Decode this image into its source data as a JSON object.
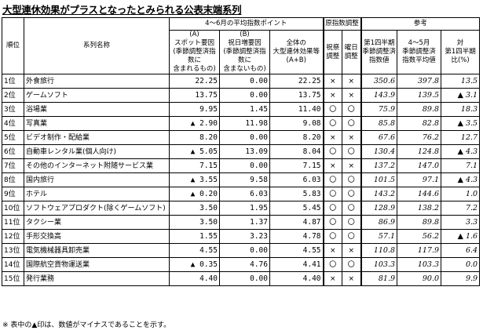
{
  "title": "大型連休効果がプラスとなったとみられる公表末端系列",
  "headers": {
    "rank": "順位",
    "name": "系列名称",
    "group_points": "4～6月の平均指数ポイント",
    "a": "(A)\nスポット要因\n(季節調整済指数に\n含まれるもの)",
    "b": "(B)\n祝日増要因\n(季節調整済指数に\n含まないもの)",
    "total": "全体の\n大型連休効果等\n(A+B)",
    "group_adj": "原指数調整",
    "holiday_adj": "祝祭\n調整",
    "weekday_adj": "曜日\n調整",
    "group_ref": "参考",
    "h1": "第1四半期\n季節調整済\n指数値",
    "apr_jun": "4～5月\n季節調整済\n指数平均値",
    "ratio": "対\n第1四半期\n比(%)"
  },
  "rows": [
    {
      "rank": "1位",
      "name": "外食旅行",
      "a": "22.25",
      "b": "0.00",
      "total": "22.25",
      "holiday": "×",
      "weekday": "×",
      "q1": "350.6",
      "avg": "397.8",
      "ratio": "13.5"
    },
    {
      "rank": "2位",
      "name": "ゲームソフト",
      "a": "13.75",
      "b": "0.00",
      "total": "13.75",
      "holiday": "×",
      "weekday": "×",
      "q1": "143.9",
      "avg": "139.5",
      "ratio": "▲ 3.1"
    },
    {
      "rank": "3位",
      "name": "浴場業",
      "a": "9.95",
      "b": "1.45",
      "total": "11.40",
      "holiday": "〇",
      "weekday": "〇",
      "q1": "75.9",
      "avg": "89.8",
      "ratio": "18.3"
    },
    {
      "rank": "4位",
      "name": "写真業",
      "a": "▲ 2.90",
      "b": "11.98",
      "total": "9.08",
      "holiday": "〇",
      "weekday": "〇",
      "q1": "85.8",
      "avg": "82.8",
      "ratio": "▲ 3.5"
    },
    {
      "rank": "5位",
      "name": "ビデオ制作・配給業",
      "a": "8.20",
      "b": "0.00",
      "total": "8.20",
      "holiday": "×",
      "weekday": "×",
      "q1": "67.6",
      "avg": "76.2",
      "ratio": "12.7"
    },
    {
      "rank": "6位",
      "name": "自動車レンタル業(個人向け)",
      "a": "▲ 5.05",
      "b": "13.09",
      "total": "8.04",
      "holiday": "〇",
      "weekday": "〇",
      "q1": "130.4",
      "avg": "124.8",
      "ratio": "▲ 4.3"
    },
    {
      "rank": "7位",
      "name": "その他のインターネット附随サービス業",
      "a": "7.15",
      "b": "0.00",
      "total": "7.15",
      "holiday": "×",
      "weekday": "×",
      "q1": "137.2",
      "avg": "147.0",
      "ratio": "7.1"
    },
    {
      "rank": "8位",
      "name": "国内旅行",
      "a": "▲ 3.55",
      "b": "9.58",
      "total": "6.03",
      "holiday": "〇",
      "weekday": "〇",
      "q1": "101.5",
      "avg": "97.1",
      "ratio": "▲ 4.3"
    },
    {
      "rank": "9位",
      "name": "ホテル",
      "a": "▲ 0.20",
      "b": "6.03",
      "total": "5.83",
      "holiday": "〇",
      "weekday": "〇",
      "q1": "143.2",
      "avg": "144.6",
      "ratio": "1.0"
    },
    {
      "rank": "10位",
      "name": "ソフトウェアプロダクト(除くゲームソフト)",
      "a": "3.50",
      "b": "1.95",
      "total": "5.45",
      "holiday": "〇",
      "weekday": "〇",
      "q1": "128.9",
      "avg": "138.2",
      "ratio": "7.2"
    },
    {
      "rank": "11位",
      "name": "タクシー業",
      "a": "3.50",
      "b": "1.37",
      "total": "4.87",
      "holiday": "〇",
      "weekday": "〇",
      "q1": "86.9",
      "avg": "89.8",
      "ratio": "3.3"
    },
    {
      "rank": "12位",
      "name": "手形交換高",
      "a": "1.55",
      "b": "3.23",
      "total": "4.78",
      "holiday": "〇",
      "weekday": "〇",
      "q1": "57.1",
      "avg": "56.2",
      "ratio": "▲ 1.6"
    },
    {
      "rank": "13位",
      "name": "電気機械器具卸売業",
      "a": "4.55",
      "b": "0.00",
      "total": "4.55",
      "holiday": "×",
      "weekday": "×",
      "q1": "110.8",
      "avg": "117.9",
      "ratio": "6.4"
    },
    {
      "rank": "14位",
      "name": "国際航空貨物運送業",
      "a": "▲ 0.35",
      "b": "4.76",
      "total": "4.41",
      "holiday": "〇",
      "weekday": "〇",
      "q1": "103.3",
      "avg": "103.3",
      "ratio": "0.0"
    },
    {
      "rank": "15位",
      "name": "発行業務",
      "a": "4.40",
      "b": "0.00",
      "total": "4.40",
      "holiday": "×",
      "weekday": "×",
      "q1": "81.9",
      "avg": "90.0",
      "ratio": "9.9"
    }
  ],
  "footnote": "※ 表中の▲印は、数値がマイナスであることを示す。"
}
